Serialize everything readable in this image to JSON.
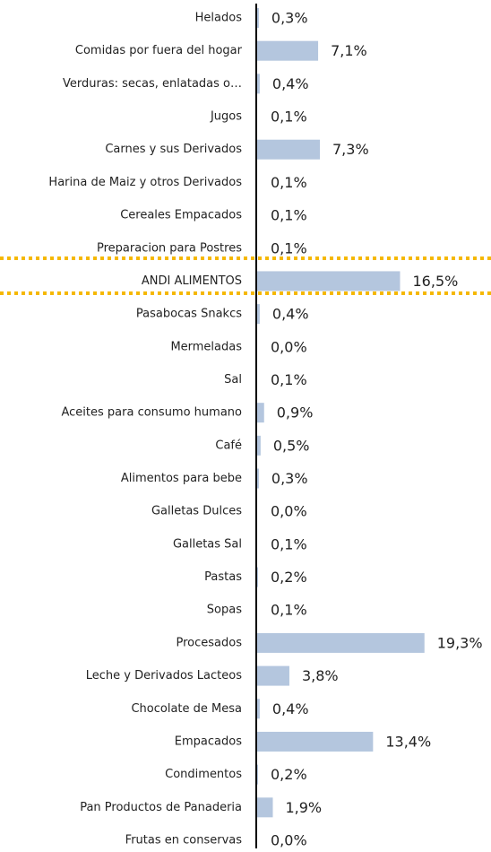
{
  "chart_data": {
    "type": "hbar",
    "categories": [
      "Helados",
      "Comidas por fuera del hogar",
      "Verduras: secas, enlatadas o…",
      "Jugos",
      "Carnes y sus Derivados",
      "Harina de Maiz y otros Derivados",
      "Cereales Empacados",
      "Preparacion para Postres",
      "ANDI ALIMENTOS",
      "Pasabocas Snakcs",
      "Mermeladas",
      "Sal",
      "Aceites para consumo humano",
      "Café",
      "Alimentos para bebe",
      "Galletas Dulces",
      "Galletas Sal",
      "Pastas",
      "Sopas",
      "Procesados",
      "Leche y Derivados Lacteos",
      "Chocolate de Mesa",
      "Empacados",
      "Condimentos",
      "Pan Productos de Panaderia",
      "Frutas en conservas"
    ],
    "values": [
      0.3,
      7.1,
      0.4,
      0.1,
      7.3,
      0.1,
      0.1,
      0.1,
      16.5,
      0.4,
      0.0,
      0.1,
      0.9,
      0.5,
      0.3,
      0.0,
      0.1,
      0.2,
      0.1,
      19.3,
      3.8,
      0.4,
      13.4,
      0.2,
      1.9,
      0.0
    ],
    "value_labels": [
      "0,3%",
      "7,1%",
      "0,4%",
      "0,1%",
      "7,3%",
      "0,1%",
      "0,1%",
      "0,1%",
      "16,5%",
      "0,4%",
      "0,0%",
      "0,1%",
      "0,9%",
      "0,5%",
      "0,3%",
      "0,0%",
      "0,1%",
      "0,2%",
      "0,1%",
      "19,3%",
      "3,8%",
      "0,4%",
      "13,4%",
      "0,2%",
      "1,9%",
      "0,0%"
    ],
    "color": "#b4c6de",
    "xlim": [
      0,
      22
    ]
  }
}
